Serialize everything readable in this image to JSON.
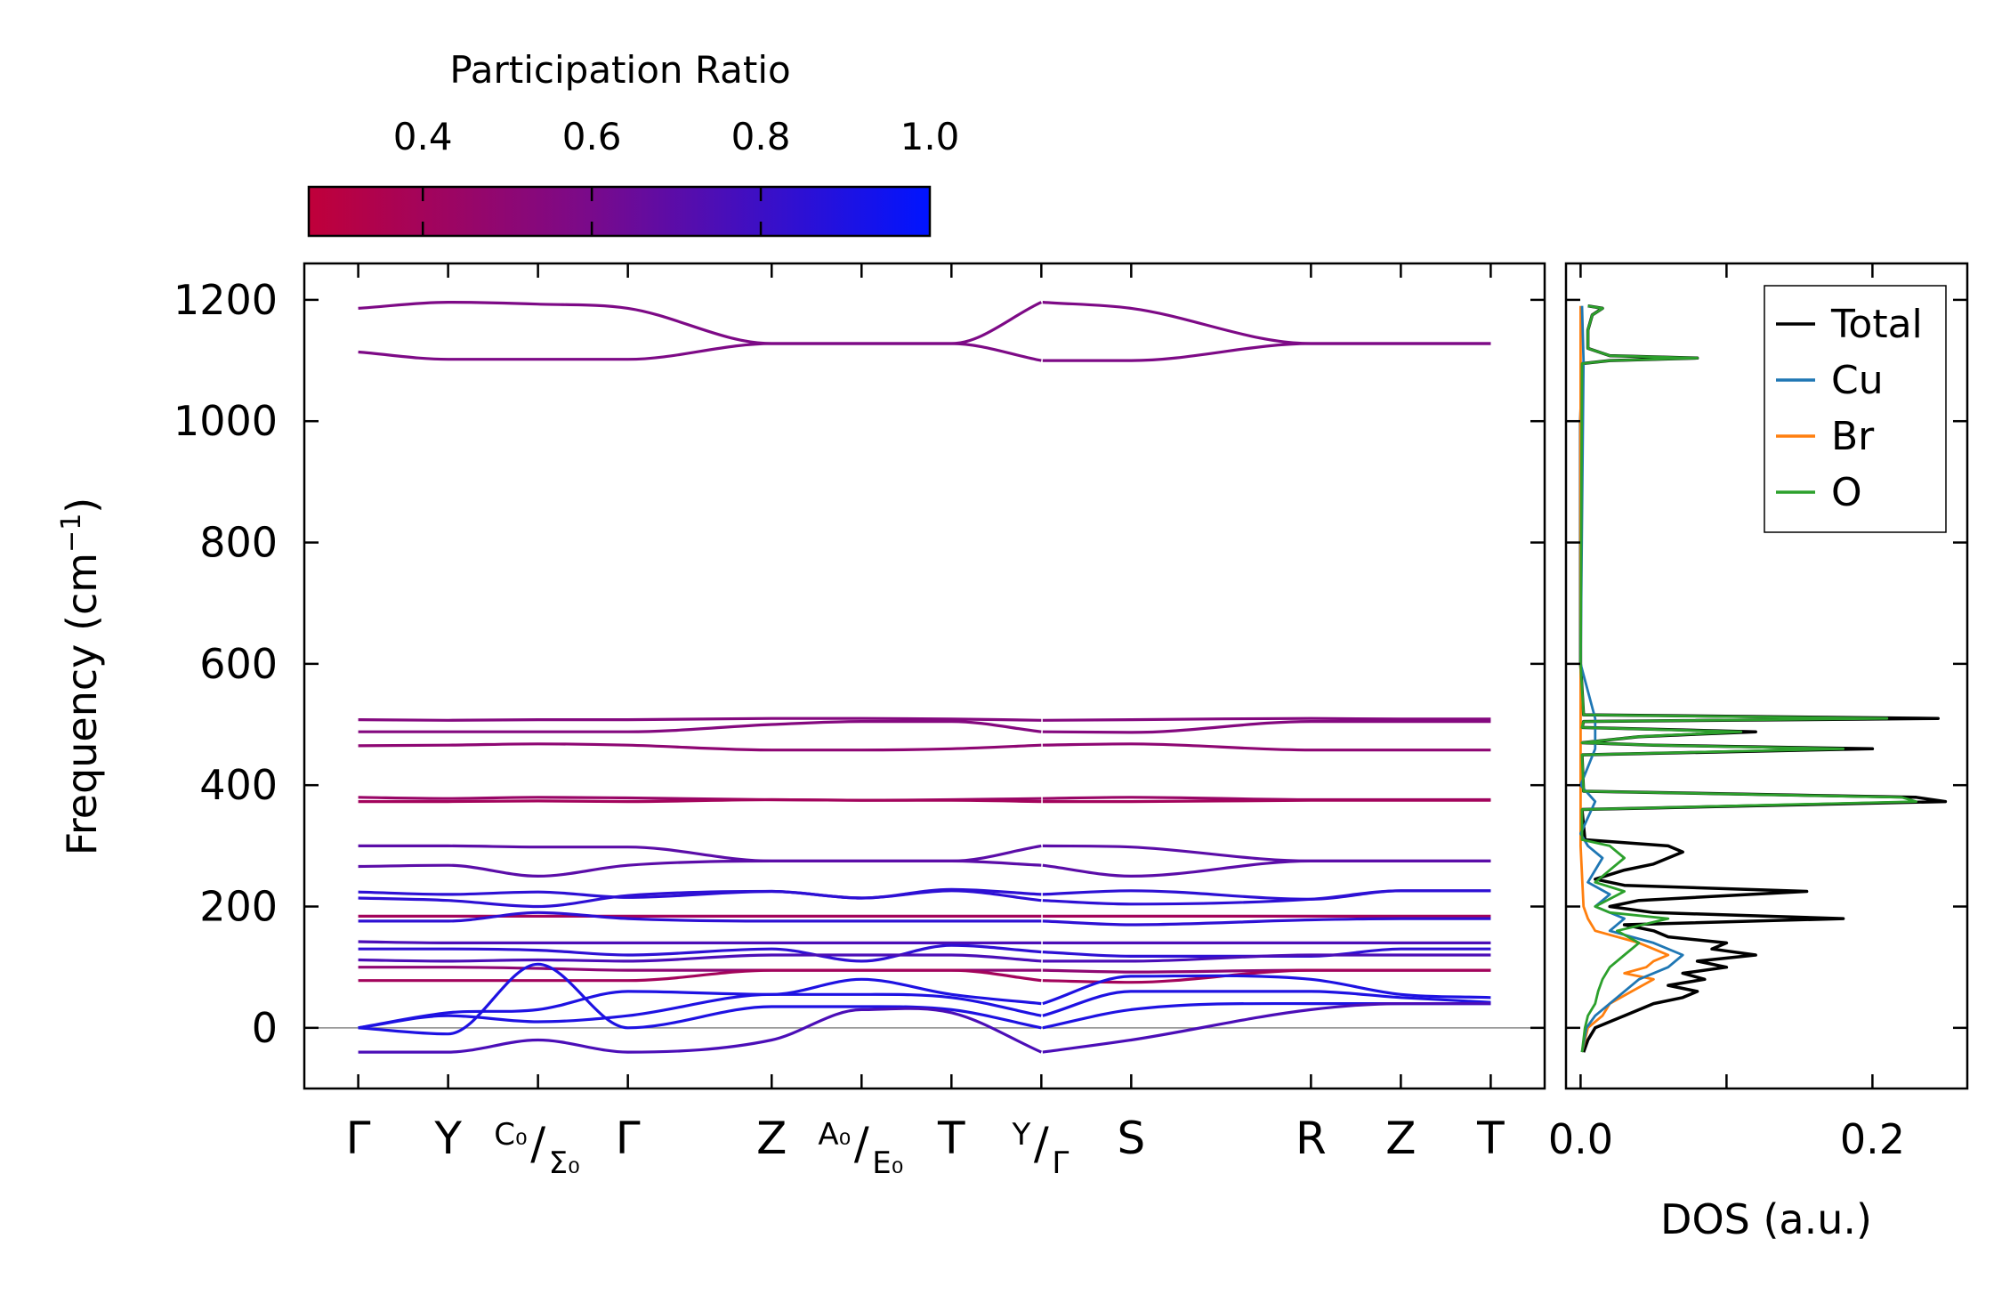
{
  "colorbar": {
    "title": "Participation Ratio",
    "ticks": [
      "0.4",
      "0.6",
      "0.8",
      "1.0"
    ],
    "tick_values": [
      0.4,
      0.6,
      0.8,
      1.0
    ],
    "range": [
      0.265,
      1.0
    ],
    "color_low": "#c0003a",
    "color_mid": "#7a0a8a",
    "color_high": "#0014ff"
  },
  "chart_data": [
    {
      "type": "line",
      "name": "phonon-band-structure",
      "ylabel": "Frequency (cm",
      "ylabel_sup": "−1",
      "ylabel_close": ")",
      "ylim": [
        -100,
        1260
      ],
      "yticks": [
        "0",
        "200",
        "400",
        "600",
        "800",
        "1000",
        "1200"
      ],
      "ytick_values": [
        0,
        200,
        400,
        600,
        800,
        1000,
        1200
      ],
      "x_points": [
        0,
        1,
        2,
        3,
        4.6,
        5.6,
        6.6,
        7.6,
        8.6,
        10.6,
        11.6,
        12.6
      ],
      "xlim": [
        -0.6,
        13.2
      ],
      "kpoints": [
        {
          "x": 0,
          "label": "Γ"
        },
        {
          "x": 1,
          "label": "Y"
        },
        {
          "x": 2,
          "label_left": "C₀",
          "label_slash": "/",
          "label_right": "Σ₀"
        },
        {
          "x": 3,
          "label": "Γ"
        },
        {
          "x": 4.6,
          "label": "Z"
        },
        {
          "x": 5.6,
          "label_left": "A₀",
          "label_slash": "/",
          "label_right": "E₀"
        },
        {
          "x": 6.6,
          "label": "T"
        },
        {
          "x": 7.6,
          "label_left": "Y",
          "label_slash": "/",
          "label_right": "Γ"
        },
        {
          "x": 8.6,
          "label": "S"
        },
        {
          "x": 10.6,
          "label": "R"
        },
        {
          "x": 11.6,
          "label": "Z"
        },
        {
          "x": 12.6,
          "label": "T"
        }
      ],
      "bands": [
        {
          "pr": 0.58,
          "values": [
            1186,
            1196,
            1193,
            1186,
            1128,
            1128,
            1128,
            1196,
            1186,
            1128,
            1128,
            1128
          ]
        },
        {
          "pr": 0.58,
          "values": [
            1114,
            1102,
            1102,
            1102,
            1128,
            1128,
            1128,
            1100,
            1100,
            1128,
            1128,
            1128
          ]
        },
        {
          "pr": 0.55,
          "values": [
            508,
            507,
            508,
            508,
            510,
            510,
            509,
            507,
            508,
            510,
            509,
            509
          ]
        },
        {
          "pr": 0.55,
          "values": [
            488,
            488,
            488,
            488,
            500,
            505,
            505,
            488,
            487,
            505,
            505,
            505
          ]
        },
        {
          "pr": 0.5,
          "values": [
            465,
            466,
            468,
            466,
            458,
            458,
            460,
            466,
            468,
            458,
            458,
            458
          ]
        },
        {
          "pr": 0.45,
          "values": [
            380,
            378,
            380,
            379,
            376,
            375,
            376,
            378,
            380,
            376,
            376,
            376
          ]
        },
        {
          "pr": 0.4,
          "values": [
            373,
            373,
            374,
            373,
            376,
            375,
            375,
            373,
            373,
            375,
            375,
            375
          ]
        },
        {
          "pr": 0.7,
          "values": [
            300,
            300,
            298,
            298,
            275,
            275,
            275,
            300,
            298,
            275,
            275,
            275
          ]
        },
        {
          "pr": 0.7,
          "values": [
            266,
            268,
            250,
            268,
            275,
            275,
            275,
            268,
            250,
            275,
            275,
            275
          ]
        },
        {
          "pr": 0.85,
          "values": [
            224,
            220,
            224,
            215,
            225,
            214,
            228,
            220,
            226,
            212,
            226,
            226
          ]
        },
        {
          "pr": 0.85,
          "values": [
            214,
            210,
            200,
            218,
            225,
            214,
            226,
            210,
            204,
            212,
            226,
            226
          ]
        },
        {
          "pr": 0.4,
          "values": [
            184,
            184,
            184,
            184,
            184,
            184,
            184,
            184,
            184,
            184,
            184,
            184
          ]
        },
        {
          "pr": 0.85,
          "values": [
            176,
            176,
            190,
            180,
            176,
            176,
            176,
            176,
            170,
            178,
            180,
            180
          ]
        },
        {
          "pr": 0.75,
          "values": [
            142,
            140,
            140,
            140,
            140,
            140,
            140,
            140,
            140,
            140,
            140,
            140
          ]
        },
        {
          "pr": 0.85,
          "values": [
            130,
            130,
            128,
            120,
            130,
            110,
            136,
            125,
            118,
            118,
            130,
            130
          ]
        },
        {
          "pr": 0.75,
          "values": [
            112,
            110,
            112,
            110,
            120,
            120,
            120,
            110,
            110,
            120,
            120,
            120
          ]
        },
        {
          "pr": 0.5,
          "values": [
            100,
            100,
            98,
            95,
            95,
            95,
            95,
            95,
            92,
            95,
            95,
            95
          ]
        },
        {
          "pr": 0.4,
          "values": [
            78,
            78,
            78,
            78,
            95,
            95,
            95,
            78,
            75,
            95,
            95,
            95
          ]
        },
        {
          "pr": 0.9,
          "values": [
            0,
            25,
            30,
            60,
            55,
            80,
            55,
            40,
            85,
            80,
            55,
            50
          ]
        },
        {
          "pr": 0.9,
          "values": [
            0,
            20,
            10,
            20,
            55,
            55,
            50,
            20,
            60,
            60,
            50,
            42
          ]
        },
        {
          "pr": 0.9,
          "values": [
            0,
            -10,
            105,
            0,
            35,
            35,
            30,
            0,
            30,
            40,
            40,
            40
          ]
        },
        {
          "pr": 0.75,
          "values": [
            -40,
            -40,
            -20,
            -40,
            -20,
            30,
            25,
            -40,
            -20,
            30,
            40,
            40
          ]
        }
      ]
    },
    {
      "type": "line",
      "name": "phonon-dos",
      "xlabel": "DOS (a.u.)",
      "xlim": [
        -0.01,
        0.265
      ],
      "xticks": [
        "0.0",
        "0.2"
      ],
      "xtick_values": [
        0.0,
        0.2
      ],
      "ylim": [
        -100,
        1260
      ],
      "legend_position": "top-right",
      "series": [
        {
          "name": "Total",
          "color": "#000000",
          "points": [
            [
              -40,
              0.002
            ],
            [
              -20,
              0.005
            ],
            [
              0,
              0.01
            ],
            [
              20,
              0.03
            ],
            [
              40,
              0.05
            ],
            [
              50,
              0.07
            ],
            [
              60,
              0.08
            ],
            [
              70,
              0.06
            ],
            [
              80,
              0.085
            ],
            [
              90,
              0.07
            ],
            [
              100,
              0.1
            ],
            [
              110,
              0.08
            ],
            [
              120,
              0.12
            ],
            [
              130,
              0.09
            ],
            [
              140,
              0.1
            ],
            [
              150,
              0.06
            ],
            [
              160,
              0.05
            ],
            [
              170,
              0.03
            ],
            [
              180,
              0.18
            ],
            [
              190,
              0.05
            ],
            [
              200,
              0.02
            ],
            [
              210,
              0.04
            ],
            [
              225,
              0.155
            ],
            [
              235,
              0.03
            ],
            [
              245,
              0.01
            ],
            [
              260,
              0.03
            ],
            [
              270,
              0.05
            ],
            [
              280,
              0.06
            ],
            [
              290,
              0.07
            ],
            [
              300,
              0.06
            ],
            [
              310,
              0.003
            ],
            [
              360,
              0.001
            ],
            [
              373,
              0.25
            ],
            [
              380,
              0.23
            ],
            [
              390,
              0.002
            ],
            [
              450,
              0.001
            ],
            [
              460,
              0.2
            ],
            [
              466,
              0.05
            ],
            [
              470,
              0.001
            ],
            [
              480,
              0.04
            ],
            [
              488,
              0.12
            ],
            [
              495,
              0.001
            ],
            [
              505,
              0.002
            ],
            [
              510,
              0.245
            ],
            [
              516,
              0.002
            ],
            [
              600,
              0.0
            ],
            [
              1000,
              0.0
            ],
            [
              1095,
              0.001
            ],
            [
              1100,
              0.02
            ],
            [
              1104,
              0.08
            ],
            [
              1108,
              0.02
            ],
            [
              1120,
              0.005
            ],
            [
              1150,
              0.005
            ],
            [
              1175,
              0.008
            ],
            [
              1186,
              0.015
            ],
            [
              1190,
              0.005
            ]
          ]
        },
        {
          "name": "Cu",
          "color": "#1f77b4",
          "points": [
            [
              -40,
              0.001
            ],
            [
              0,
              0.004
            ],
            [
              20,
              0.01
            ],
            [
              40,
              0.02
            ],
            [
              60,
              0.03
            ],
            [
              80,
              0.04
            ],
            [
              100,
              0.06
            ],
            [
              120,
              0.07
            ],
            [
              140,
              0.05
            ],
            [
              160,
              0.02
            ],
            [
              180,
              0.03
            ],
            [
              200,
              0.01
            ],
            [
              220,
              0.02
            ],
            [
              240,
              0.005
            ],
            [
              260,
              0.01
            ],
            [
              280,
              0.015
            ],
            [
              300,
              0.005
            ],
            [
              320,
              0.0
            ],
            [
              373,
              0.01
            ],
            [
              400,
              0.0
            ],
            [
              460,
              0.01
            ],
            [
              510,
              0.01
            ],
            [
              600,
              0.0
            ],
            [
              1100,
              0.002
            ],
            [
              1190,
              0.001
            ]
          ]
        },
        {
          "name": "Br",
          "color": "#ff7f0e",
          "points": [
            [
              -40,
              0.001
            ],
            [
              0,
              0.005
            ],
            [
              20,
              0.015
            ],
            [
              40,
              0.02
            ],
            [
              60,
              0.035
            ],
            [
              80,
              0.05
            ],
            [
              90,
              0.03
            ],
            [
              100,
              0.045
            ],
            [
              110,
              0.05
            ],
            [
              120,
              0.06
            ],
            [
              130,
              0.05
            ],
            [
              140,
              0.04
            ],
            [
              160,
              0.01
            ],
            [
              180,
              0.005
            ],
            [
              200,
              0.002
            ],
            [
              300,
              0.0
            ],
            [
              1000,
              0.0
            ],
            [
              1190,
              0.0
            ]
          ]
        },
        {
          "name": "O",
          "color": "#2ca02c",
          "points": [
            [
              -40,
              0.001
            ],
            [
              0,
              0.003
            ],
            [
              20,
              0.005
            ],
            [
              40,
              0.01
            ],
            [
              60,
              0.012
            ],
            [
              80,
              0.015
            ],
            [
              100,
              0.02
            ],
            [
              120,
              0.03
            ],
            [
              140,
              0.04
            ],
            [
              160,
              0.025
            ],
            [
              180,
              0.06
            ],
            [
              190,
              0.02
            ],
            [
              200,
              0.01
            ],
            [
              225,
              0.03
            ],
            [
              240,
              0.01
            ],
            [
              260,
              0.02
            ],
            [
              280,
              0.03
            ],
            [
              300,
              0.02
            ],
            [
              310,
              0.001
            ],
            [
              360,
              0.001
            ],
            [
              373,
              0.23
            ],
            [
              380,
              0.22
            ],
            [
              390,
              0.002
            ],
            [
              450,
              0.001
            ],
            [
              460,
              0.18
            ],
            [
              466,
              0.05
            ],
            [
              470,
              0.001
            ],
            [
              480,
              0.04
            ],
            [
              488,
              0.11
            ],
            [
              495,
              0.001
            ],
            [
              505,
              0.002
            ],
            [
              510,
              0.21
            ],
            [
              516,
              0.002
            ],
            [
              600,
              0.0
            ],
            [
              1095,
              0.001
            ],
            [
              1100,
              0.02
            ],
            [
              1104,
              0.08
            ],
            [
              1108,
              0.02
            ],
            [
              1120,
              0.005
            ],
            [
              1150,
              0.005
            ],
            [
              1175,
              0.008
            ],
            [
              1186,
              0.015
            ],
            [
              1190,
              0.005
            ]
          ]
        }
      ]
    }
  ]
}
